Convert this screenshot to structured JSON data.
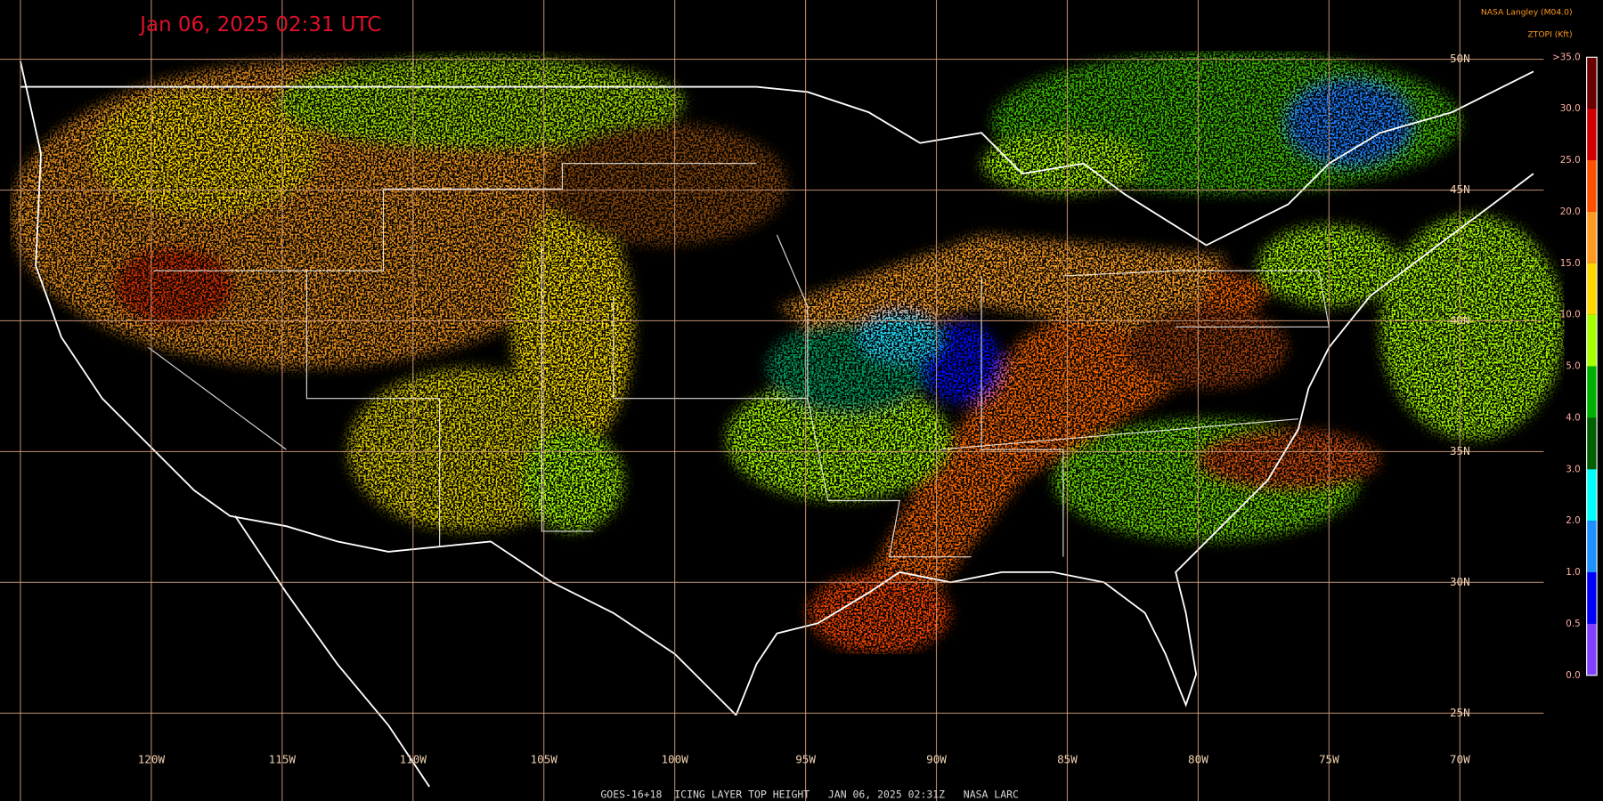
{
  "header": {
    "title": "Jan 06, 2025 02:31 UTC",
    "credit": "NASA Langley (M04.0)"
  },
  "footer": "GOES-16+18  ICING LAYER TOP HEIGHT   JAN 06, 2025 02:31Z   NASA LARC",
  "grid": {
    "latitudes": [
      "50N",
      "45N",
      "40N",
      "35N",
      "30N",
      "25N"
    ],
    "longitudes": [
      "120W",
      "115W",
      "110W",
      "105W",
      "100W",
      "95W",
      "90W",
      "85W",
      "80W",
      "75W",
      "70W"
    ],
    "color": "#d8a080"
  },
  "colorbar": {
    "title": "ZTOPI (Kft)",
    "labels": [
      ">35.0",
      "30.0",
      "25.0",
      "20.0",
      "15.0",
      "10.0",
      "5.0",
      "4.0",
      "3.0",
      "2.0",
      "1.0",
      "0.5",
      "0.0"
    ],
    "colors": [
      "#6a0000",
      "#d00000",
      "#ff5000",
      "#ff9a20",
      "#ffd800",
      "#a8ff00",
      "#00b000",
      "#006000",
      "#00ffff",
      "#1e90ff",
      "#0000ff",
      "#8040ff"
    ]
  }
}
